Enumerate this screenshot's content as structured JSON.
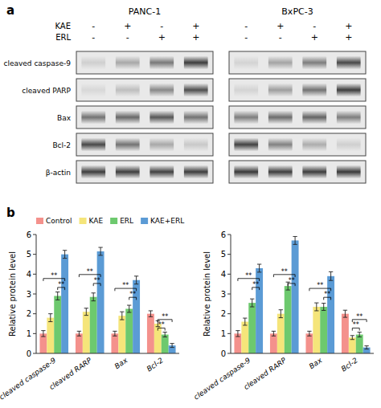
{
  "chart_data": [
    {
      "type": "heatmap",
      "title": "PANC-1",
      "annotations": [
        {
          "label": "a"
        }
      ],
      "conditions": [
        {
          "name": "KAE",
          "labels": [
            "-",
            "+",
            "-",
            "+"
          ]
        },
        {
          "name": "ERL",
          "labels": [
            "-",
            "-",
            "+",
            "+"
          ]
        }
      ],
      "rows": [
        "cleaved caspase-9",
        "cleaved PARP",
        "Bax",
        "Bcl-2",
        "β-actin"
      ],
      "cells": [
        [
          0.12,
          0.3,
          0.52,
          0.8
        ],
        [
          0.08,
          0.2,
          0.45,
          0.72
        ],
        [
          0.55,
          0.6,
          0.68,
          0.55
        ],
        [
          0.75,
          0.55,
          0.3,
          0.15
        ],
        [
          0.8,
          0.8,
          0.78,
          0.8
        ]
      ]
    },
    {
      "type": "heatmap",
      "title": "BxPC-3",
      "conditions": [
        {
          "labels": [
            "-",
            "+",
            "-",
            "+"
          ]
        },
        {
          "labels": [
            "-",
            "-",
            "+",
            "+"
          ]
        }
      ],
      "cells": [
        [
          0.1,
          0.32,
          0.5,
          0.75
        ],
        [
          0.1,
          0.35,
          0.55,
          0.8
        ],
        [
          0.5,
          0.58,
          0.62,
          0.5
        ],
        [
          0.78,
          0.48,
          0.28,
          0.12
        ],
        [
          0.82,
          0.8,
          0.8,
          0.82
        ]
      ]
    },
    {
      "type": "bar",
      "categories": [
        "cleaved caspase-9",
        "cleaved RARP",
        "Bax",
        "Bcl-2"
      ],
      "series": [
        {
          "name": "Control",
          "color": "#F4918C",
          "values": [
            1.0,
            1.0,
            1.0,
            2.0
          ],
          "errors": [
            0.15,
            0.12,
            0.12,
            0.15
          ]
        },
        {
          "name": "KAE",
          "color": "#F5E57A",
          "values": [
            1.8,
            2.1,
            1.9,
            1.5
          ],
          "errors": [
            0.2,
            0.18,
            0.2,
            0.15
          ]
        },
        {
          "name": "ERL",
          "color": "#6DC96E",
          "values": [
            2.9,
            2.85,
            2.25,
            0.95
          ],
          "errors": [
            0.2,
            0.2,
            0.18,
            0.12
          ]
        },
        {
          "name": "KAE+ERL",
          "color": "#5B9BD5",
          "values": [
            5.0,
            5.15,
            3.7,
            0.4
          ],
          "errors": [
            0.2,
            0.2,
            0.2,
            0.1
          ]
        }
      ],
      "ylabel": "Relative protein level",
      "ylim": [
        0,
        6
      ],
      "yticks": [
        0,
        1,
        2,
        3,
        4,
        5,
        6
      ],
      "legend": "upper left",
      "annotations": [
        {
          "label": "b"
        },
        {
          "label": "**",
          "category": 0,
          "series": [
            2,
            3
          ],
          "y": 3.2
        },
        {
          "label": "**",
          "category": 0,
          "series": [
            0,
            3
          ],
          "y": 3.65
        },
        {
          "label": "**",
          "category": 1,
          "series": [
            2,
            3
          ],
          "y": 3.4
        },
        {
          "label": "**",
          "category": 1,
          "series": [
            0,
            3
          ],
          "y": 3.85
        },
        {
          "label": "**",
          "category": 2,
          "series": [
            2,
            3
          ],
          "y": 2.7
        },
        {
          "label": "**",
          "category": 2,
          "series": [
            0,
            3
          ],
          "y": 3.15
        },
        {
          "label": "**",
          "category": 3,
          "series": [
            1,
            2
          ],
          "y": 1.15
        },
        {
          "label": "**",
          "category": 3,
          "series": [
            1,
            3
          ],
          "y": 1.58
        }
      ]
    },
    {
      "type": "bar",
      "categories": [
        "cleaved caspase-9",
        "cleaved RARP",
        "Bax",
        "Bcl-2"
      ],
      "series": [
        {
          "color": "#F4918C",
          "values": [
            1.0,
            1.0,
            1.0,
            2.0
          ],
          "errors": [
            0.15,
            0.12,
            0.12,
            0.18
          ]
        },
        {
          "color": "#F5E57A",
          "values": [
            1.6,
            2.0,
            2.35,
            0.8
          ],
          "errors": [
            0.18,
            0.2,
            0.2,
            0.1
          ]
        },
        {
          "color": "#6DC96E",
          "values": [
            2.55,
            3.4,
            2.35,
            0.95
          ],
          "errors": [
            0.2,
            0.2,
            0.18,
            0.12
          ]
        },
        {
          "color": "#5B9BD5",
          "values": [
            4.3,
            5.7,
            3.9,
            0.3
          ],
          "errors": [
            0.2,
            0.2,
            0.22,
            0.08
          ]
        }
      ],
      "ylabel": "Relative protein level",
      "ylim": [
        0,
        6
      ],
      "yticks": [
        0,
        1,
        2,
        3,
        4,
        5,
        6
      ],
      "annotations": [
        {
          "label": "**",
          "category": 0,
          "series": [
            2,
            3
          ],
          "y": 3.2
        },
        {
          "label": "**",
          "category": 0,
          "series": [
            0,
            3
          ],
          "y": 3.65
        },
        {
          "label": "**",
          "category": 1,
          "series": [
            2,
            3
          ],
          "y": 3.4
        },
        {
          "label": "**",
          "category": 1,
          "series": [
            0,
            3
          ],
          "y": 3.85
        },
        {
          "label": "**",
          "category": 2,
          "series": [
            2,
            3
          ],
          "y": 2.7
        },
        {
          "label": "**",
          "category": 2,
          "series": [
            0,
            3
          ],
          "y": 3.15
        },
        {
          "label": "**",
          "category": 3,
          "series": [
            1,
            2
          ],
          "y": 1.15
        },
        {
          "label": "**",
          "category": 3,
          "series": [
            1,
            3
          ],
          "y": 1.58
        }
      ]
    }
  ]
}
